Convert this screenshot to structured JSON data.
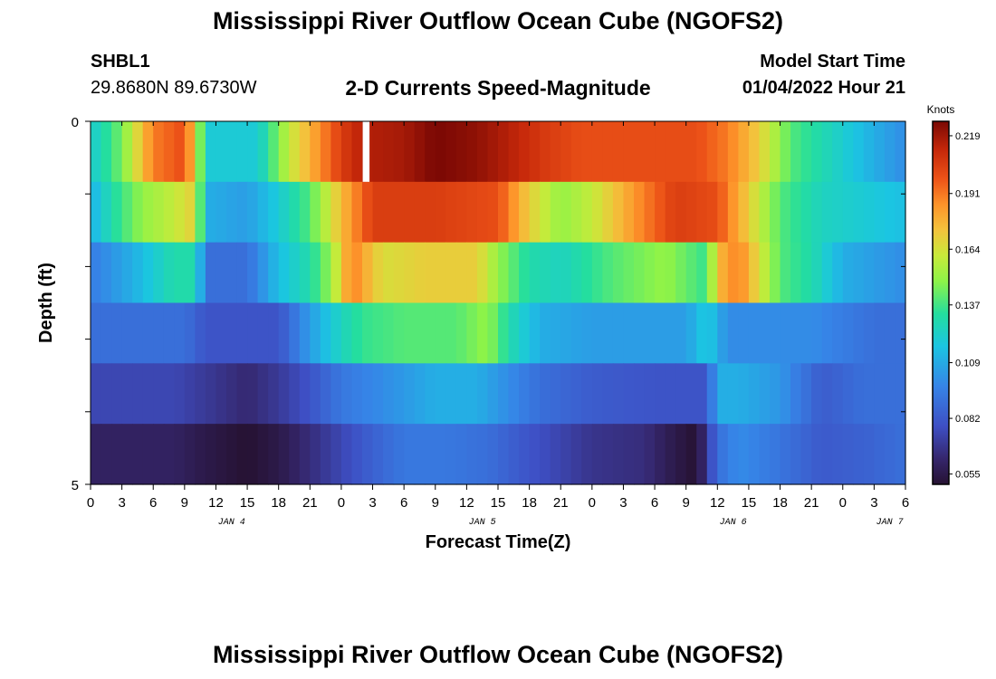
{
  "header": {
    "title": "Mississippi River Outflow Ocean Cube (NGOFS2)",
    "station": "SHBL1",
    "coords": "29.8680N  89.6730W",
    "subtitle": "2-D Currents Speed-Magnitude",
    "model_start_label": "Model Start Time",
    "model_start_value": "01/04/2022 Hour 21"
  },
  "footer": {
    "title": "Mississippi River Outflow Ocean Cube (NGOFS2)"
  },
  "chart_data": {
    "type": "heatmap",
    "xlabel": "Forecast Time(Z)",
    "ylabel": "Depth (ft)",
    "x_tick_labels": [
      "0",
      "3",
      "6",
      "9",
      "12",
      "15",
      "18",
      "21",
      "0",
      "3",
      "6",
      "9",
      "12",
      "15",
      "18",
      "21",
      "0",
      "3",
      "6",
      "9",
      "12",
      "15",
      "18",
      "21",
      "0",
      "3",
      "6"
    ],
    "date_labels": [
      {
        "label": "JAN 4",
        "hour_index": 13.5
      },
      {
        "label": "JAN 5",
        "hour_index": 37.5
      },
      {
        "label": "JAN 6",
        "hour_index": 61.5
      },
      {
        "label": "JAN 7",
        "hour_index": 76.5
      }
    ],
    "y_tick_labels": [
      "0",
      "5"
    ],
    "ylim": [
      0,
      5
    ],
    "colorbar": {
      "unit": "Knots",
      "min": 0.05,
      "max": 0.226,
      "ticks": [
        "0.219",
        "0.191",
        "0.164",
        "0.137",
        "0.109",
        "0.082",
        "0.055"
      ]
    },
    "hours": 78,
    "layers": [
      {
        "depth_index": 0,
        "keys": [
          [
            0,
            0.12
          ],
          [
            3,
            0.145
          ],
          [
            6,
            0.19
          ],
          [
            9,
            0.2
          ],
          [
            10,
            0.17
          ],
          [
            11,
            0.12
          ],
          [
            16,
            0.12
          ],
          [
            19,
            0.16
          ],
          [
            24,
            0.205
          ],
          [
            26,
            0.215
          ],
          [
            30,
            0.218
          ],
          [
            33,
            0.226
          ],
          [
            37,
            0.222
          ],
          [
            40,
            0.215
          ],
          [
            44,
            0.205
          ],
          [
            47,
            0.2
          ],
          [
            53,
            0.2
          ],
          [
            58,
            0.2
          ],
          [
            61,
            0.19
          ],
          [
            64,
            0.17
          ],
          [
            67,
            0.14
          ],
          [
            71,
            0.125
          ],
          [
            75,
            0.11
          ],
          [
            78,
            0.1
          ]
        ]
      },
      {
        "depth_index": 1,
        "keys": [
          [
            0,
            0.11
          ],
          [
            2,
            0.13
          ],
          [
            5,
            0.15
          ],
          [
            8,
            0.16
          ],
          [
            10,
            0.17
          ],
          [
            11,
            0.11
          ],
          [
            15,
            0.105
          ],
          [
            18,
            0.12
          ],
          [
            21,
            0.14
          ],
          [
            24,
            0.175
          ],
          [
            27,
            0.205
          ],
          [
            33,
            0.205
          ],
          [
            39,
            0.2
          ],
          [
            42,
            0.17
          ],
          [
            45,
            0.15
          ],
          [
            48,
            0.16
          ],
          [
            53,
            0.19
          ],
          [
            56,
            0.205
          ],
          [
            60,
            0.2
          ],
          [
            62,
            0.18
          ],
          [
            66,
            0.14
          ],
          [
            70,
            0.125
          ],
          [
            74,
            0.12
          ],
          [
            78,
            0.115
          ]
        ]
      },
      {
        "depth_index": 2,
        "keys": [
          [
            0,
            0.095
          ],
          [
            4,
            0.11
          ],
          [
            8,
            0.13
          ],
          [
            10,
            0.13
          ],
          [
            11,
            0.09
          ],
          [
            15,
            0.09
          ],
          [
            18,
            0.115
          ],
          [
            21,
            0.13
          ],
          [
            23,
            0.15
          ],
          [
            25,
            0.19
          ],
          [
            28,
            0.165
          ],
          [
            32,
            0.17
          ],
          [
            37,
            0.17
          ],
          [
            39,
            0.15
          ],
          [
            42,
            0.13
          ],
          [
            45,
            0.125
          ],
          [
            50,
            0.14
          ],
          [
            55,
            0.15
          ],
          [
            59,
            0.135
          ],
          [
            60,
            0.175
          ],
          [
            62,
            0.19
          ],
          [
            64,
            0.165
          ],
          [
            66,
            0.14
          ],
          [
            69,
            0.13
          ],
          [
            72,
            0.11
          ],
          [
            78,
            0.1
          ]
        ]
      },
      {
        "depth_index": 3,
        "keys": [
          [
            0,
            0.09
          ],
          [
            6,
            0.09
          ],
          [
            9,
            0.09
          ],
          [
            11,
            0.08
          ],
          [
            18,
            0.08
          ],
          [
            21,
            0.105
          ],
          [
            24,
            0.125
          ],
          [
            26,
            0.135
          ],
          [
            30,
            0.14
          ],
          [
            35,
            0.14
          ],
          [
            38,
            0.15
          ],
          [
            40,
            0.13
          ],
          [
            43,
            0.11
          ],
          [
            48,
            0.105
          ],
          [
            52,
            0.105
          ],
          [
            57,
            0.105
          ],
          [
            59,
            0.12
          ],
          [
            61,
            0.1
          ],
          [
            64,
            0.1
          ],
          [
            67,
            0.1
          ],
          [
            69,
            0.1
          ],
          [
            72,
            0.095
          ],
          [
            75,
            0.09
          ],
          [
            78,
            0.09
          ]
        ]
      },
      {
        "depth_index": 4,
        "keys": [
          [
            0,
            0.075
          ],
          [
            8,
            0.075
          ],
          [
            11,
            0.07
          ],
          [
            15,
            0.063
          ],
          [
            18,
            0.07
          ],
          [
            21,
            0.08
          ],
          [
            24,
            0.093
          ],
          [
            28,
            0.1
          ],
          [
            33,
            0.11
          ],
          [
            37,
            0.11
          ],
          [
            40,
            0.1
          ],
          [
            43,
            0.09
          ],
          [
            48,
            0.083
          ],
          [
            54,
            0.08
          ],
          [
            59,
            0.08
          ],
          [
            60,
            0.11
          ],
          [
            62,
            0.11
          ],
          [
            66,
            0.103
          ],
          [
            70,
            0.083
          ],
          [
            74,
            0.09
          ],
          [
            78,
            0.09
          ]
        ]
      },
      {
        "depth_index": 5,
        "keys": [
          [
            0,
            0.06
          ],
          [
            8,
            0.06
          ],
          [
            11,
            0.055
          ],
          [
            15,
            0.05
          ],
          [
            18,
            0.055
          ],
          [
            21,
            0.065
          ],
          [
            24,
            0.075
          ],
          [
            27,
            0.085
          ],
          [
            30,
            0.093
          ],
          [
            34,
            0.093
          ],
          [
            38,
            0.09
          ],
          [
            42,
            0.08
          ],
          [
            48,
            0.068
          ],
          [
            53,
            0.065
          ],
          [
            56,
            0.055
          ],
          [
            58,
            0.05
          ],
          [
            60,
            0.09
          ],
          [
            62,
            0.1
          ],
          [
            66,
            0.092
          ],
          [
            70,
            0.082
          ],
          [
            74,
            0.085
          ],
          [
            78,
            0.09
          ]
        ]
      }
    ],
    "missing": [
      {
        "hour": 26,
        "depth_index": 0
      }
    ]
  }
}
